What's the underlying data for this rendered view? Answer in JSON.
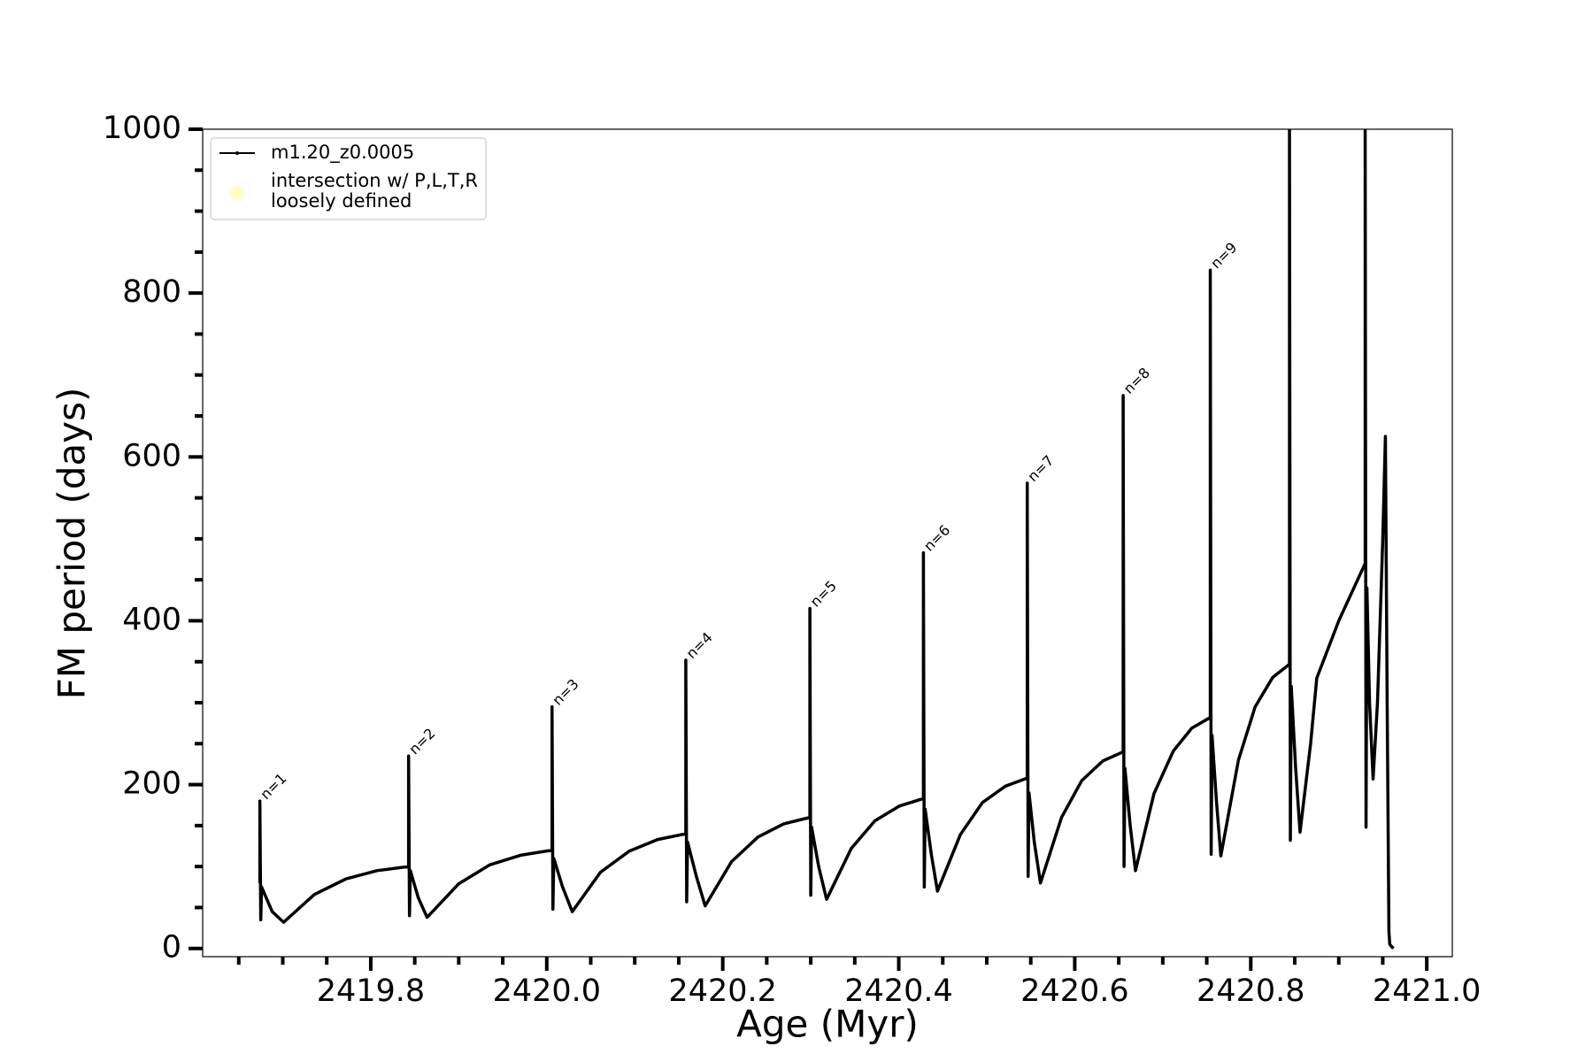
{
  "chart_data": {
    "type": "line",
    "xlabel": "Age (Myr)",
    "ylabel": "FM period (days)",
    "xlim": [
      2419.609,
      2421.029
    ],
    "ylim": [
      -10,
      1000
    ],
    "xticks": [
      2419.8,
      {
        "value": 2420,
        "label": "2420.0"
      },
      2420.2,
      2420.4,
      2420.6,
      2420.8,
      {
        "value": 2421,
        "label": "2421.0"
      }
    ],
    "x_minor_ticks": [
      2419.65,
      2419.7,
      2419.75,
      2419.85,
      2419.9,
      2419.95,
      2420.05,
      2420.1,
      2420.15,
      2420.25,
      2420.3,
      2420.35,
      2420.45,
      2420.5,
      2420.55,
      2420.65,
      2420.7,
      2420.75,
      2420.85,
      2420.9,
      2420.95
    ],
    "yticks": [
      0,
      200,
      400,
      600,
      800,
      1000
    ],
    "y_minor_ticks": [
      50,
      100,
      150,
      250,
      300,
      350,
      450,
      500,
      550,
      650,
      700,
      750,
      850,
      900,
      950
    ],
    "grid": false,
    "legend": "upper left",
    "x": [
      2419.674,
      2419.674,
      2419.675,
      2419.676,
      2419.688,
      2419.701,
      2419.736,
      2419.772,
      2419.807,
      2419.843,
      2419.843,
      2419.844,
      2419.845,
      2419.854,
      2419.864,
      2419.9,
      2419.935,
      2419.971,
      2420.006,
      2420.006,
      2420.007,
      2420.008,
      2420.018,
      2420.029,
      2420.061,
      2420.094,
      2420.126,
      2420.158,
      2420.158,
      2420.159,
      2420.16,
      2420.17,
      2420.18,
      2420.21,
      2420.24,
      2420.269,
      2420.299,
      2420.299,
      2420.3,
      2420.301,
      2420.309,
      2420.318,
      2420.346,
      2420.373,
      2420.401,
      2420.428,
      2420.428,
      2420.429,
      2420.43,
      2420.437,
      2420.444,
      2420.47,
      2420.495,
      2420.521,
      2420.546,
      2420.546,
      2420.547,
      2420.548,
      2420.554,
      2420.561,
      2420.585,
      2420.608,
      2420.632,
      2420.655,
      2420.655,
      2420.656,
      2420.657,
      2420.663,
      2420.669,
      2420.69,
      2420.712,
      2420.733,
      2420.754,
      2420.754,
      2420.755,
      2420.756,
      2420.761,
      2420.766,
      2420.786,
      2420.805,
      2420.825,
      2420.844,
      2420.844,
      2420.845,
      2420.846,
      2420.851,
      2420.856,
      2420.868,
      2420.875,
      2420.9,
      2420.93,
      2420.93,
      2420.931,
      2420.932,
      2420.935,
      2420.939,
      2420.944,
      2420.95,
      2420.953,
      2420.955,
      2420.957,
      2420.958,
      2420.962
    ],
    "series": [
      {
        "name": "m1.20_z0.0005",
        "color": "#000000",
        "values": [
          80,
          180,
          35,
          75,
          45,
          32,
          66,
          85,
          95,
          100,
          235,
          40,
          95,
          62,
          38,
          79,
          102,
          114,
          120,
          295,
          48,
          110,
          75,
          45,
          93,
          119,
          133,
          140,
          352,
          57,
          130,
          88,
          52,
          106,
          136,
          152,
          160,
          415,
          65,
          148,
          100,
          60,
          122,
          156,
          174,
          183,
          483,
          75,
          170,
          115,
          70,
          139,
          178,
          198,
          208,
          568,
          88,
          190,
          130,
          80,
          160,
          205,
          229,
          240,
          675,
          100,
          220,
          150,
          95,
          189,
          241,
          269,
          282,
          828,
          115,
          260,
          180,
          113,
          230,
          295,
          331,
          347,
          1000,
          132,
          320,
          220,
          142,
          250,
          330,
          400,
          470,
          1000,
          148,
          440,
          300,
          207,
          300,
          500,
          625,
          300,
          20,
          5,
          0
        ]
      }
    ],
    "legend_extra": {
      "lines": [
        "intersection w/ P,L,T,R",
        "loosely defined"
      ],
      "color": "#ffffc0"
    },
    "annotations": [
      {
        "text": "n=1",
        "x": 2419.674,
        "y": 180
      },
      {
        "text": "n=2",
        "x": 2419.843,
        "y": 235
      },
      {
        "text": "n=3",
        "x": 2420.006,
        "y": 295
      },
      {
        "text": "n=4",
        "x": 2420.158,
        "y": 352
      },
      {
        "text": "n=5",
        "x": 2420.299,
        "y": 415
      },
      {
        "text": "n=6",
        "x": 2420.428,
        "y": 483
      },
      {
        "text": "n=7",
        "x": 2420.546,
        "y": 568
      },
      {
        "text": "n=8",
        "x": 2420.655,
        "y": 675
      },
      {
        "text": "n=9",
        "x": 2420.754,
        "y": 828
      }
    ]
  }
}
